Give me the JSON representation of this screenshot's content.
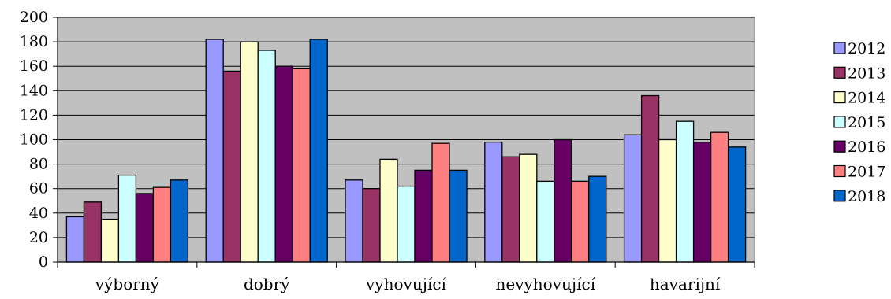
{
  "chart_data": {
    "type": "bar",
    "title": "",
    "xlabel": "",
    "ylabel": "",
    "categories": [
      "výborný",
      "dobrý",
      "vyhovující",
      "nevyhovující",
      "havarijní"
    ],
    "ylim": [
      0,
      200
    ],
    "yticks": [
      0,
      20,
      40,
      60,
      80,
      100,
      120,
      140,
      160,
      180,
      200
    ],
    "grid": true,
    "legend": "right",
    "plot_background": "#c0c0c0",
    "series": [
      {
        "name": "2012",
        "color": "#9999ff",
        "values": [
          37,
          182,
          67,
          98,
          104
        ]
      },
      {
        "name": "2013",
        "color": "#993366",
        "values": [
          49,
          156,
          60,
          86,
          136
        ]
      },
      {
        "name": "2014",
        "color": "#ffffcc",
        "values": [
          35,
          180,
          84,
          88,
          100
        ]
      },
      {
        "name": "2015",
        "color": "#ccffff",
        "values": [
          71,
          173,
          62,
          66,
          115
        ]
      },
      {
        "name": "2016",
        "color": "#660066",
        "values": [
          56,
          160,
          75,
          100,
          98
        ]
      },
      {
        "name": "2017",
        "color": "#ff8080",
        "values": [
          61,
          158,
          97,
          66,
          106
        ]
      },
      {
        "name": "2018",
        "color": "#0066cc",
        "values": [
          67,
          182,
          75,
          70,
          94
        ]
      }
    ]
  }
}
